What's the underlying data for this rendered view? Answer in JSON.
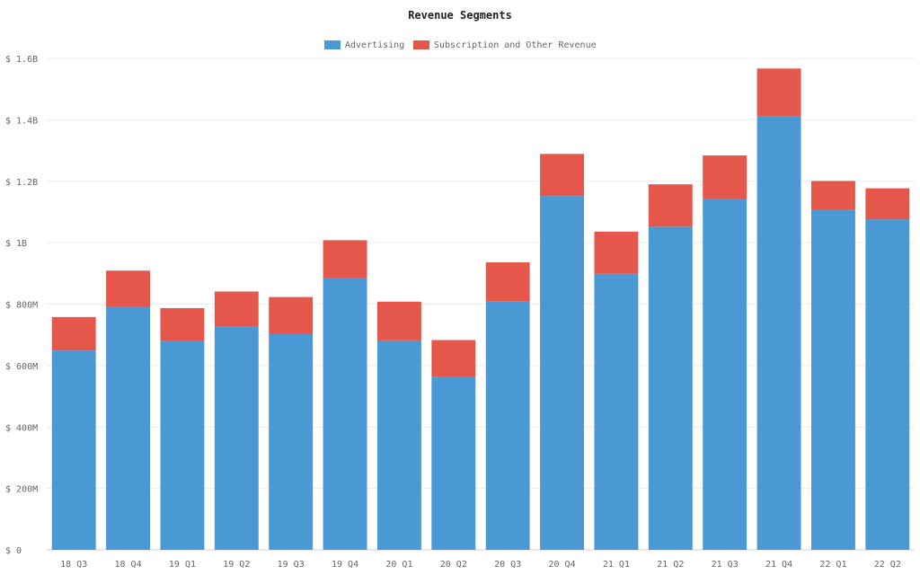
{
  "chart_data": {
    "type": "bar",
    "stacked": true,
    "title": "Revenue Segments",
    "categories": [
      "18 Q3",
      "18 Q4",
      "19 Q1",
      "19 Q2",
      "19 Q3",
      "19 Q4",
      "20 Q1",
      "20 Q2",
      "20 Q3",
      "20 Q4",
      "21 Q1",
      "21 Q2",
      "21 Q3",
      "21 Q4",
      "22 Q1",
      "22 Q2"
    ],
    "series": [
      {
        "name": "Advertising",
        "color": "#4a98d4",
        "values": [
          649,
          791,
          679,
          727,
          702,
          885,
          682,
          562,
          808,
          1152,
          899,
          1052,
          1141,
          1411,
          1106,
          1076
        ]
      },
      {
        "name": "Subscription and Other Revenue",
        "color": "#e5574a",
        "values": [
          109,
          118,
          108,
          114,
          121,
          123,
          126,
          121,
          128,
          137,
          137,
          138,
          143,
          156,
          95,
          101
        ]
      }
    ],
    "ylim": [
      0,
      1600
    ],
    "unit": "M",
    "y_ticks": [
      0,
      200,
      400,
      600,
      800,
      1000,
      1200,
      1400,
      1600
    ],
    "y_tick_labels": [
      "$ 0",
      "$ 200M",
      "$ 400M",
      "$ 600M",
      "$ 800M",
      "$ 1B",
      "$ 1.2B",
      "$ 1.4B",
      "$ 1.6B"
    ],
    "legend_position": "top-center",
    "grid": true,
    "xlabel": "",
    "ylabel": ""
  }
}
